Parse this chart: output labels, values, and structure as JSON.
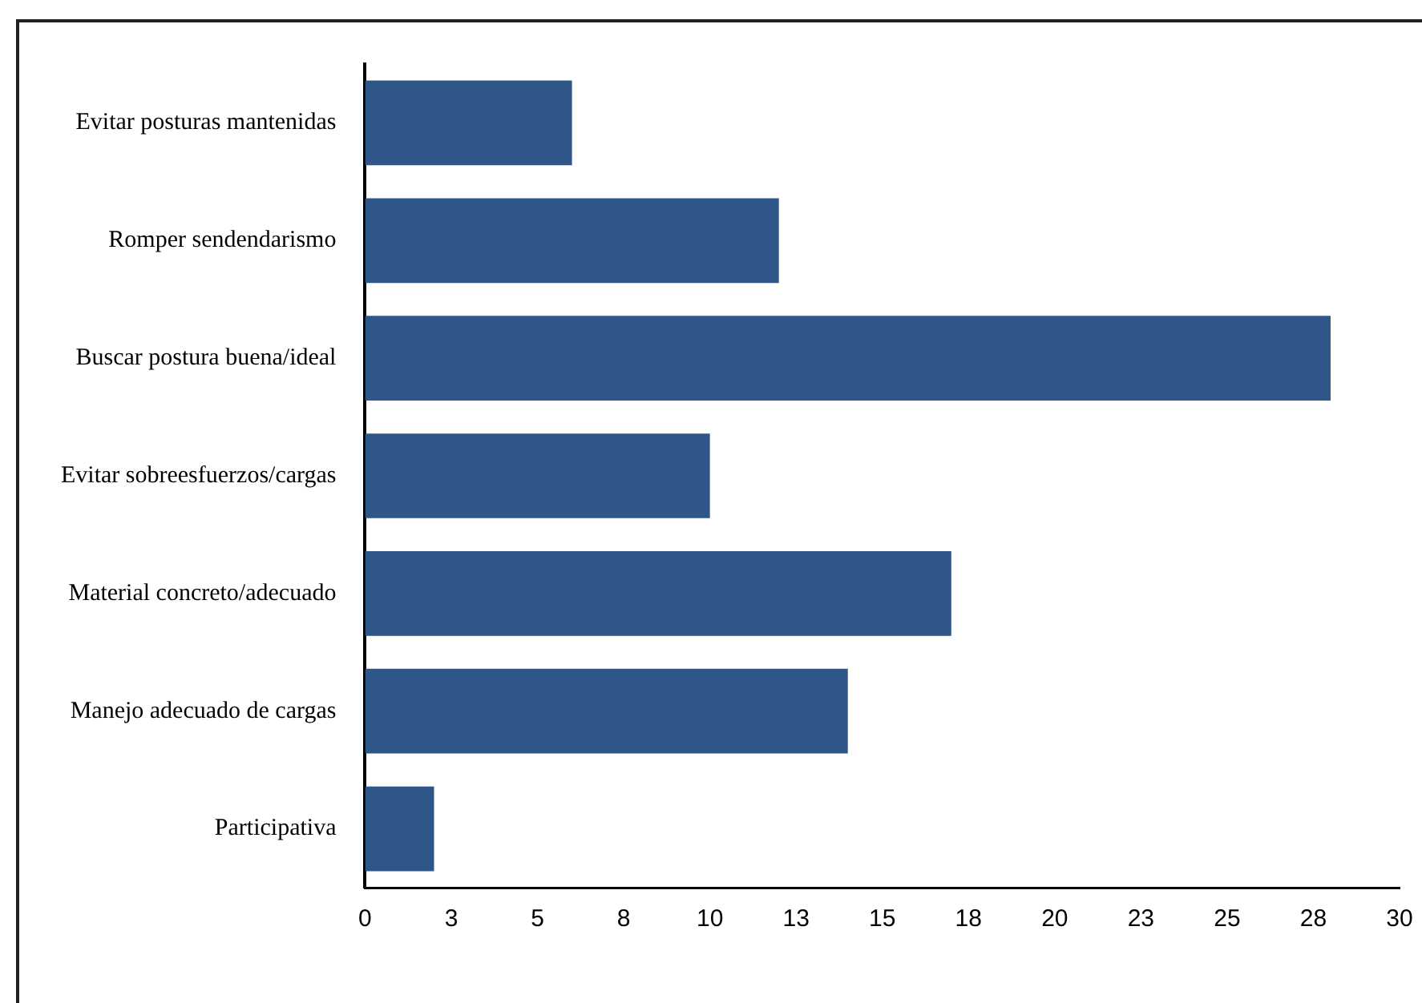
{
  "chart_data": {
    "type": "bar",
    "orientation": "horizontal",
    "categories": [
      "Evitar posturas mantenidas",
      "Romper sendendarismo",
      "Buscar postura buena/ideal",
      "Evitar sobreesfuerzos/cargas",
      "Material concreto/adecuado",
      "Manejo adecuado de cargas",
      "Participativa"
    ],
    "values": [
      6,
      12,
      28,
      10,
      17,
      14,
      2
    ],
    "color": "#2e5689",
    "xlim": [
      0,
      30
    ],
    "xticks": [
      0,
      {
        "value": 2.5,
        "label": "3"
      },
      5,
      {
        "value": 7.5,
        "label": "8"
      },
      10,
      {
        "value": 12.5,
        "label": "13"
      },
      15,
      {
        "value": 17.5,
        "label": "18"
      },
      20,
      {
        "value": 22.5,
        "label": "23"
      },
      25,
      {
        "value": 27.5,
        "label": "28"
      },
      30
    ],
    "grid": false,
    "legend": false
  }
}
